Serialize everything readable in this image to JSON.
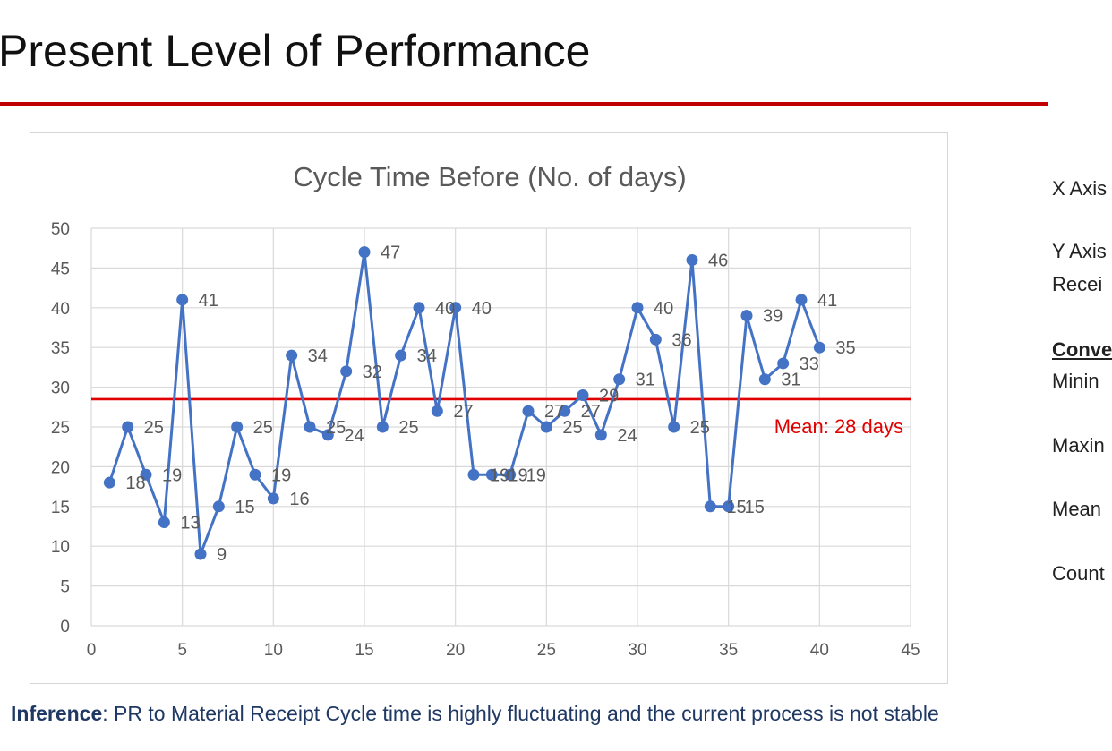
{
  "slide": {
    "title": "Present Level of Performance",
    "accent_color": "#c00000"
  },
  "side_panel": {
    "items": [
      "X Axis",
      "Y Axis",
      "Recei",
      "Conve",
      "Minin",
      "Maxin",
      "Mean",
      "Count"
    ]
  },
  "inference": {
    "label": "Inference",
    "text": ": PR to Material Receipt Cycle time is highly fluctuating and the current process is not stable"
  },
  "chart_data": {
    "type": "line",
    "title": "Cycle Time Before (No. of days)",
    "xlabel": "",
    "ylabel": "",
    "xlim": [
      0,
      45
    ],
    "ylim": [
      0,
      50
    ],
    "x_ticks": [
      0,
      5,
      10,
      15,
      20,
      25,
      30,
      35,
      40,
      45
    ],
    "y_ticks": [
      0,
      5,
      10,
      15,
      20,
      25,
      30,
      35,
      40,
      45,
      50
    ],
    "grid": true,
    "series": [
      {
        "color": "#4472c4",
        "x": [
          1,
          2,
          3,
          4,
          5,
          6,
          7,
          8,
          9,
          10,
          11,
          12,
          13,
          14,
          15,
          16,
          17,
          18,
          19,
          20,
          21,
          22,
          23,
          24,
          25,
          26,
          27,
          28,
          29,
          30,
          31,
          32,
          33,
          34,
          35,
          36,
          37,
          38,
          39,
          40
        ],
        "values": [
          18,
          25,
          19,
          13,
          41,
          9,
          15,
          25,
          19,
          16,
          34,
          25,
          24,
          32,
          47,
          25,
          34,
          40,
          27,
          40,
          19,
          19,
          19,
          27,
          25,
          27,
          29,
          24,
          31,
          40,
          36,
          25,
          46,
          15,
          15,
          39,
          31,
          33,
          41,
          35
        ]
      }
    ],
    "data_labels": [
      {
        "i": 0,
        "text": "18"
      },
      {
        "i": 1,
        "text": "25"
      },
      {
        "i": 2,
        "text": "19"
      },
      {
        "i": 3,
        "text": "13"
      },
      {
        "i": 4,
        "text": "41"
      },
      {
        "i": 5,
        "text": "9"
      },
      {
        "i": 6,
        "text": "15"
      },
      {
        "i": 7,
        "text": "25"
      },
      {
        "i": 8,
        "text": "19"
      },
      {
        "i": 9,
        "text": "16"
      },
      {
        "i": 10,
        "text": "34"
      },
      {
        "i": 11,
        "text": "25"
      },
      {
        "i": 12,
        "text": "24"
      },
      {
        "i": 13,
        "text": "32"
      },
      {
        "i": 14,
        "text": "47"
      },
      {
        "i": 15,
        "text": "25"
      },
      {
        "i": 16,
        "text": "34"
      },
      {
        "i": 17,
        "text": "40"
      },
      {
        "i": 18,
        "text": "27"
      },
      {
        "i": 19,
        "text": "40"
      },
      {
        "i": 20,
        "text": "19"
      },
      {
        "i": 21,
        "text": "19"
      },
      {
        "i": 22,
        "text": "19"
      },
      {
        "i": 23,
        "text": "27"
      },
      {
        "i": 24,
        "text": "25"
      },
      {
        "i": 25,
        "text": "27"
      },
      {
        "i": 26,
        "text": "29"
      },
      {
        "i": 27,
        "text": "24"
      },
      {
        "i": 28,
        "text": "31"
      },
      {
        "i": 29,
        "text": "40"
      },
      {
        "i": 30,
        "text": "36"
      },
      {
        "i": 31,
        "text": "25"
      },
      {
        "i": 32,
        "text": "46"
      },
      {
        "i": 33,
        "text": "15"
      },
      {
        "i": 34,
        "text": "15"
      },
      {
        "i": 35,
        "text": "39"
      },
      {
        "i": 36,
        "text": "31"
      },
      {
        "i": 37,
        "text": "33"
      },
      {
        "i": 38,
        "text": "41"
      },
      {
        "i": 39,
        "text": "35"
      }
    ],
    "reference_line": {
      "y": 28.5,
      "label": "Mean: 28 days",
      "color": "#e00000"
    }
  }
}
